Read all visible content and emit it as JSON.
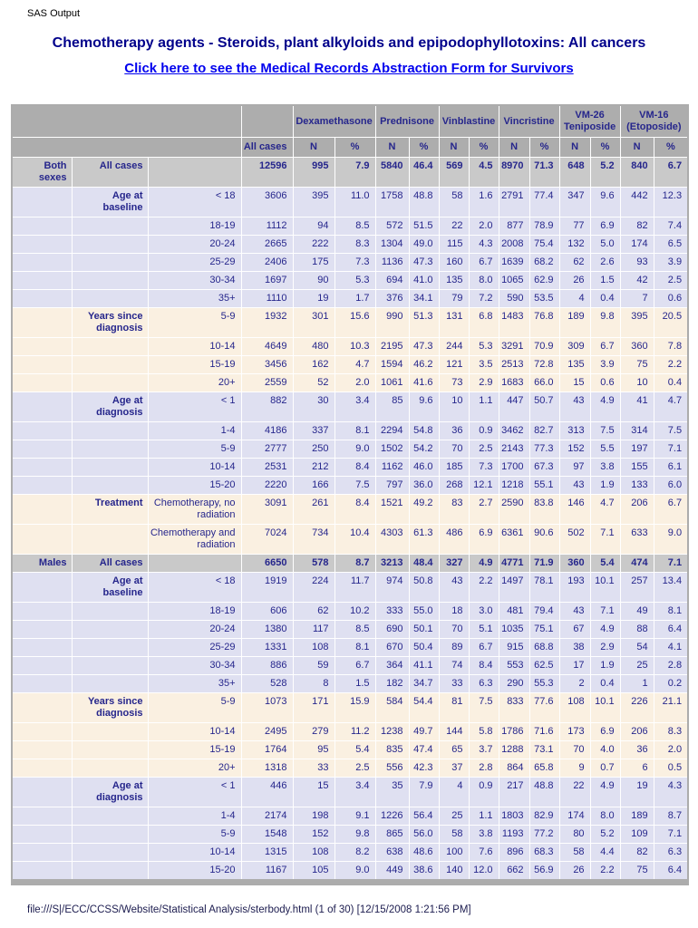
{
  "page": {
    "app_label": "SAS Output",
    "title": "Chemotherapy agents - Steroids, plant alkyloids and epipodophyllotoxins: All cancers",
    "link_text": "Click here to see the Medical Records Abstraction Form for Survivors",
    "footer": "file:///S|/ECC/CCSS/Website/Statistical Analysis/sterbody.html (1 of 30) [12/15/2008 1:21:56 PM]"
  },
  "colors": {
    "title_navy": "#00008b",
    "link_blue": "#0000ee",
    "table_text_navy": "#26268c",
    "header_gray": "#adadad",
    "total_row_gray": "#c9c9c9",
    "band_lavender": "#dfe0f1",
    "band_cream": "#faf0e1",
    "cell_border_white": "#ffffff"
  },
  "table": {
    "column_groups": [
      "Dexamethasone",
      "Prednisone",
      "Vinblastine",
      "Vincristine",
      "VM-26 Teniposide",
      "VM-16 (Etoposide)"
    ],
    "all_cases_label": "All cases",
    "n_label": "N",
    "pct_label": "%",
    "rows": [
      {
        "sex": "Both sexes",
        "cat": "All cases",
        "sub": "",
        "band": "gray",
        "total": true,
        "values": [
          "12596",
          "995",
          "7.9",
          "5840",
          "46.4",
          "569",
          "4.5",
          "8970",
          "71.3",
          "648",
          "5.2",
          "840",
          "6.7"
        ]
      },
      {
        "sex": "",
        "cat": "Age at baseline",
        "sub": "< 18",
        "band": "lav",
        "total": false,
        "values": [
          "3606",
          "395",
          "11.0",
          "1758",
          "48.8",
          "58",
          "1.6",
          "2791",
          "77.4",
          "347",
          "9.6",
          "442",
          "12.3"
        ]
      },
      {
        "sex": "",
        "cat": "",
        "sub": "18-19",
        "band": "lav",
        "total": false,
        "values": [
          "1112",
          "94",
          "8.5",
          "572",
          "51.5",
          "22",
          "2.0",
          "877",
          "78.9",
          "77",
          "6.9",
          "82",
          "7.4"
        ]
      },
      {
        "sex": "",
        "cat": "",
        "sub": "20-24",
        "band": "lav",
        "total": false,
        "values": [
          "2665",
          "222",
          "8.3",
          "1304",
          "49.0",
          "115",
          "4.3",
          "2008",
          "75.4",
          "132",
          "5.0",
          "174",
          "6.5"
        ]
      },
      {
        "sex": "",
        "cat": "",
        "sub": "25-29",
        "band": "lav",
        "total": false,
        "values": [
          "2406",
          "175",
          "7.3",
          "1136",
          "47.3",
          "160",
          "6.7",
          "1639",
          "68.2",
          "62",
          "2.6",
          "93",
          "3.9"
        ]
      },
      {
        "sex": "",
        "cat": "",
        "sub": "30-34",
        "band": "lav",
        "total": false,
        "values": [
          "1697",
          "90",
          "5.3",
          "694",
          "41.0",
          "135",
          "8.0",
          "1065",
          "62.9",
          "26",
          "1.5",
          "42",
          "2.5"
        ]
      },
      {
        "sex": "",
        "cat": "",
        "sub": "35+",
        "band": "lav",
        "total": false,
        "values": [
          "1110",
          "19",
          "1.7",
          "376",
          "34.1",
          "79",
          "7.2",
          "590",
          "53.5",
          "4",
          "0.4",
          "7",
          "0.6"
        ]
      },
      {
        "sex": "",
        "cat": "Years since diagnosis",
        "sub": "5-9",
        "band": "cream",
        "total": false,
        "values": [
          "1932",
          "301",
          "15.6",
          "990",
          "51.3",
          "131",
          "6.8",
          "1483",
          "76.8",
          "189",
          "9.8",
          "395",
          "20.5"
        ]
      },
      {
        "sex": "",
        "cat": "",
        "sub": "10-14",
        "band": "cream",
        "total": false,
        "values": [
          "4649",
          "480",
          "10.3",
          "2195",
          "47.3",
          "244",
          "5.3",
          "3291",
          "70.9",
          "309",
          "6.7",
          "360",
          "7.8"
        ]
      },
      {
        "sex": "",
        "cat": "",
        "sub": "15-19",
        "band": "cream",
        "total": false,
        "values": [
          "3456",
          "162",
          "4.7",
          "1594",
          "46.2",
          "121",
          "3.5",
          "2513",
          "72.8",
          "135",
          "3.9",
          "75",
          "2.2"
        ]
      },
      {
        "sex": "",
        "cat": "",
        "sub": "20+",
        "band": "cream",
        "total": false,
        "values": [
          "2559",
          "52",
          "2.0",
          "1061",
          "41.6",
          "73",
          "2.9",
          "1683",
          "66.0",
          "15",
          "0.6",
          "10",
          "0.4"
        ]
      },
      {
        "sex": "",
        "cat": "Age at diagnosis",
        "sub": "< 1",
        "band": "lav",
        "total": false,
        "values": [
          "882",
          "30",
          "3.4",
          "85",
          "9.6",
          "10",
          "1.1",
          "447",
          "50.7",
          "43",
          "4.9",
          "41",
          "4.7"
        ]
      },
      {
        "sex": "",
        "cat": "",
        "sub": "1-4",
        "band": "lav",
        "total": false,
        "values": [
          "4186",
          "337",
          "8.1",
          "2294",
          "54.8",
          "36",
          "0.9",
          "3462",
          "82.7",
          "313",
          "7.5",
          "314",
          "7.5"
        ]
      },
      {
        "sex": "",
        "cat": "",
        "sub": "5-9",
        "band": "lav",
        "total": false,
        "values": [
          "2777",
          "250",
          "9.0",
          "1502",
          "54.2",
          "70",
          "2.5",
          "2143",
          "77.3",
          "152",
          "5.5",
          "197",
          "7.1"
        ]
      },
      {
        "sex": "",
        "cat": "",
        "sub": "10-14",
        "band": "lav",
        "total": false,
        "values": [
          "2531",
          "212",
          "8.4",
          "1162",
          "46.0",
          "185",
          "7.3",
          "1700",
          "67.3",
          "97",
          "3.8",
          "155",
          "6.1"
        ]
      },
      {
        "sex": "",
        "cat": "",
        "sub": "15-20",
        "band": "lav",
        "total": false,
        "values": [
          "2220",
          "166",
          "7.5",
          "797",
          "36.0",
          "268",
          "12.1",
          "1218",
          "55.1",
          "43",
          "1.9",
          "133",
          "6.0"
        ]
      },
      {
        "sex": "",
        "cat": "Treatment",
        "sub": "Chemotherapy, no radiation",
        "band": "cream",
        "total": false,
        "values": [
          "3091",
          "261",
          "8.4",
          "1521",
          "49.2",
          "83",
          "2.7",
          "2590",
          "83.8",
          "146",
          "4.7",
          "206",
          "6.7"
        ]
      },
      {
        "sex": "",
        "cat": "",
        "sub": "Chemotherapy and radiation",
        "band": "cream",
        "total": false,
        "values": [
          "7024",
          "734",
          "10.4",
          "4303",
          "61.3",
          "486",
          "6.9",
          "6361",
          "90.6",
          "502",
          "7.1",
          "633",
          "9.0"
        ]
      },
      {
        "sex": "Males",
        "cat": "All cases",
        "sub": "",
        "band": "gray",
        "total": true,
        "values": [
          "6650",
          "578",
          "8.7",
          "3213",
          "48.4",
          "327",
          "4.9",
          "4771",
          "71.9",
          "360",
          "5.4",
          "474",
          "7.1"
        ]
      },
      {
        "sex": "",
        "cat": "Age at baseline",
        "sub": "< 18",
        "band": "lav",
        "total": false,
        "values": [
          "1919",
          "224",
          "11.7",
          "974",
          "50.8",
          "43",
          "2.2",
          "1497",
          "78.1",
          "193",
          "10.1",
          "257",
          "13.4"
        ]
      },
      {
        "sex": "",
        "cat": "",
        "sub": "18-19",
        "band": "lav",
        "total": false,
        "values": [
          "606",
          "62",
          "10.2",
          "333",
          "55.0",
          "18",
          "3.0",
          "481",
          "79.4",
          "43",
          "7.1",
          "49",
          "8.1"
        ]
      },
      {
        "sex": "",
        "cat": "",
        "sub": "20-24",
        "band": "lav",
        "total": false,
        "values": [
          "1380",
          "117",
          "8.5",
          "690",
          "50.1",
          "70",
          "5.1",
          "1035",
          "75.1",
          "67",
          "4.9",
          "88",
          "6.4"
        ]
      },
      {
        "sex": "",
        "cat": "",
        "sub": "25-29",
        "band": "lav",
        "total": false,
        "values": [
          "1331",
          "108",
          "8.1",
          "670",
          "50.4",
          "89",
          "6.7",
          "915",
          "68.8",
          "38",
          "2.9",
          "54",
          "4.1"
        ]
      },
      {
        "sex": "",
        "cat": "",
        "sub": "30-34",
        "band": "lav",
        "total": false,
        "values": [
          "886",
          "59",
          "6.7",
          "364",
          "41.1",
          "74",
          "8.4",
          "553",
          "62.5",
          "17",
          "1.9",
          "25",
          "2.8"
        ]
      },
      {
        "sex": "",
        "cat": "",
        "sub": "35+",
        "band": "lav",
        "total": false,
        "values": [
          "528",
          "8",
          "1.5",
          "182",
          "34.7",
          "33",
          "6.3",
          "290",
          "55.3",
          "2",
          "0.4",
          "1",
          "0.2"
        ]
      },
      {
        "sex": "",
        "cat": "Years since diagnosis",
        "sub": "5-9",
        "band": "cream",
        "total": false,
        "values": [
          "1073",
          "171",
          "15.9",
          "584",
          "54.4",
          "81",
          "7.5",
          "833",
          "77.6",
          "108",
          "10.1",
          "226",
          "21.1"
        ]
      },
      {
        "sex": "",
        "cat": "",
        "sub": "10-14",
        "band": "cream",
        "total": false,
        "values": [
          "2495",
          "279",
          "11.2",
          "1238",
          "49.7",
          "144",
          "5.8",
          "1786",
          "71.6",
          "173",
          "6.9",
          "206",
          "8.3"
        ]
      },
      {
        "sex": "",
        "cat": "",
        "sub": "15-19",
        "band": "cream",
        "total": false,
        "values": [
          "1764",
          "95",
          "5.4",
          "835",
          "47.4",
          "65",
          "3.7",
          "1288",
          "73.1",
          "70",
          "4.0",
          "36",
          "2.0"
        ]
      },
      {
        "sex": "",
        "cat": "",
        "sub": "20+",
        "band": "cream",
        "total": false,
        "values": [
          "1318",
          "33",
          "2.5",
          "556",
          "42.3",
          "37",
          "2.8",
          "864",
          "65.8",
          "9",
          "0.7",
          "6",
          "0.5"
        ]
      },
      {
        "sex": "",
        "cat": "Age at diagnosis",
        "sub": "< 1",
        "band": "lav",
        "total": false,
        "values": [
          "446",
          "15",
          "3.4",
          "35",
          "7.9",
          "4",
          "0.9",
          "217",
          "48.8",
          "22",
          "4.9",
          "19",
          "4.3"
        ]
      },
      {
        "sex": "",
        "cat": "",
        "sub": "1-4",
        "band": "lav",
        "total": false,
        "values": [
          "2174",
          "198",
          "9.1",
          "1226",
          "56.4",
          "25",
          "1.1",
          "1803",
          "82.9",
          "174",
          "8.0",
          "189",
          "8.7"
        ]
      },
      {
        "sex": "",
        "cat": "",
        "sub": "5-9",
        "band": "lav",
        "total": false,
        "values": [
          "1548",
          "152",
          "9.8",
          "865",
          "56.0",
          "58",
          "3.8",
          "1193",
          "77.2",
          "80",
          "5.2",
          "109",
          "7.1"
        ]
      },
      {
        "sex": "",
        "cat": "",
        "sub": "10-14",
        "band": "lav",
        "total": false,
        "values": [
          "1315",
          "108",
          "8.2",
          "638",
          "48.6",
          "100",
          "7.6",
          "896",
          "68.3",
          "58",
          "4.4",
          "82",
          "6.3"
        ]
      },
      {
        "sex": "",
        "cat": "",
        "sub": "15-20",
        "band": "lav",
        "total": false,
        "values": [
          "1167",
          "105",
          "9.0",
          "449",
          "38.6",
          "140",
          "12.0",
          "662",
          "56.9",
          "26",
          "2.2",
          "75",
          "6.4"
        ]
      }
    ]
  }
}
